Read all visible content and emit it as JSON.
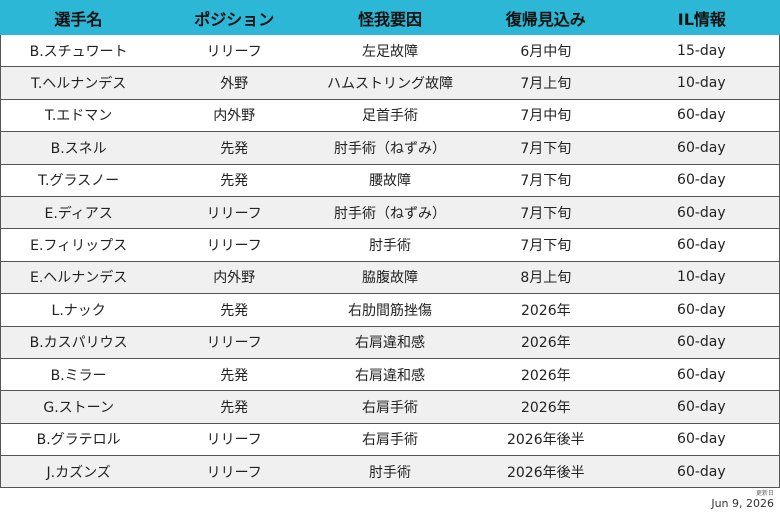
{
  "table": {
    "columns": [
      "選手名",
      "ポジション",
      "怪我要因",
      "復帰見込み",
      "IL情報"
    ],
    "rows": [
      [
        "B.スチュワート",
        "リリーフ",
        "左足故障",
        "6月中旬",
        "15-day"
      ],
      [
        "T.ヘルナンデス",
        "外野",
        "ハムストリング故障",
        "7月上旬",
        "10-day"
      ],
      [
        "T.エドマン",
        "内外野",
        "足首手術",
        "7月中旬",
        "60-day"
      ],
      [
        "B.スネル",
        "先発",
        "肘手術（ねずみ）",
        "7月下旬",
        "60-day"
      ],
      [
        "T.グラスノー",
        "先発",
        "腰故障",
        "7月下旬",
        "60-day"
      ],
      [
        "E.ディアス",
        "リリーフ",
        "肘手術（ねずみ）",
        "7月下旬",
        "60-day"
      ],
      [
        "E.フィリップス",
        "リリーフ",
        "肘手術",
        "7月下旬",
        "60-day"
      ],
      [
        "E.ヘルナンデス",
        "内外野",
        "脇腹故障",
        "8月上旬",
        "10-day"
      ],
      [
        "L.ナック",
        "先発",
        "右肋間筋挫傷",
        "2026年",
        "60-day"
      ],
      [
        "B.カスパリウス",
        "リリーフ",
        "右肩違和感",
        "2026年",
        "60-day"
      ],
      [
        "B.ミラー",
        "先発",
        "右肩違和感",
        "2026年",
        "60-day"
      ],
      [
        "G.ストーン",
        "先発",
        "右肩手術",
        "2026年",
        "60-day"
      ],
      [
        "B.グラテロル",
        "リリーフ",
        "右肩手術",
        "2026年後半",
        "60-day"
      ],
      [
        "J.カズンズ",
        "リリーフ",
        "肘手術",
        "2026年後半",
        "60-day"
      ]
    ]
  },
  "footer": {
    "label": "更新日",
    "date": "Jun 9, 2026"
  }
}
